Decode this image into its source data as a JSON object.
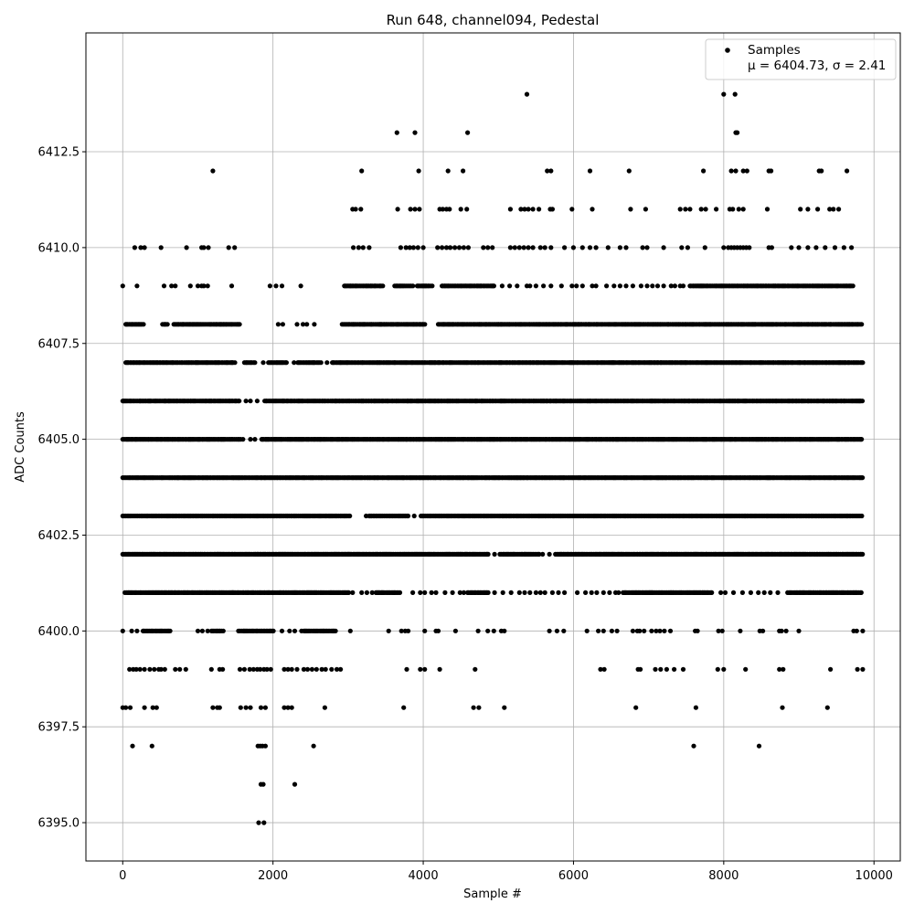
{
  "chart_data": {
    "type": "scatter",
    "title": "Run 648, channel094, Pedestal",
    "xlabel": "Sample #",
    "ylabel": "ADC Counts",
    "xlim": [
      -490,
      10350
    ],
    "ylim": [
      6394.0,
      6415.6
    ],
    "xticks": [
      0,
      2000,
      4000,
      6000,
      8000,
      10000
    ],
    "xtick_labels": [
      "0",
      "2000",
      "4000",
      "6000",
      "8000",
      "10000"
    ],
    "yticks": [
      6395.0,
      6397.5,
      6400.0,
      6402.5,
      6405.0,
      6407.5,
      6410.0,
      6412.5
    ],
    "ytick_labels": [
      "6395.0",
      "6397.5",
      "6400.0",
      "6402.5",
      "6405.0",
      "6407.5",
      "6410.0",
      "6412.5"
    ],
    "grid": true,
    "legend_position": "top-right",
    "marker_color": "#000000",
    "series": [
      {
        "name": "Samples",
        "stats_label": "μ = 6404.73, σ = 2.41",
        "x_range": [
          0,
          9850
        ],
        "dense_rows": [
          {
            "y": 6407,
            "x": [
              [
                40,
                1510
              ],
              [
                1640,
                1760
              ],
              [
                1940,
                2180
              ],
              [
                2330,
                2650
              ],
              [
                2790,
                9850
              ]
            ]
          },
          {
            "y": 6406,
            "x": [
              [
                0,
                1560
              ],
              [
                1890,
                9850
              ]
            ]
          },
          {
            "y": 6405,
            "x": [
              [
                0,
                1570
              ],
              [
                1850,
                9850
              ]
            ]
          },
          {
            "y": 6404,
            "x": [
              [
                0,
                9850
              ]
            ]
          },
          {
            "y": 6403,
            "x": [
              [
                0,
                3030
              ],
              [
                3280,
                3810
              ],
              [
                3970,
                9850
              ]
            ]
          },
          {
            "y": 6402,
            "x": [
              [
                0,
                4870
              ],
              [
                5020,
                5560
              ],
              [
                5760,
                9850
              ]
            ]
          },
          {
            "y": 6401,
            "x": [
              [
                30,
                3020
              ],
              [
                3370,
                3700
              ],
              [
                4590,
                4880
              ],
              [
                6660,
                7850
              ],
              [
                8850,
                9850
              ]
            ]
          },
          {
            "y": 6400,
            "x": [
              [
                270,
                640
              ],
              [
                1180,
                1340
              ],
              [
                1540,
                2010
              ],
              [
                2410,
                2850
              ]
            ]
          },
          {
            "y": 6408,
            "x": [
              [
                40,
                280
              ],
              [
                530,
                600
              ],
              [
                680,
                1570
              ],
              [
                2920,
                4030
              ],
              [
                4200,
                9850
              ]
            ]
          },
          {
            "y": 6409,
            "x": [
              [
                2950,
                3470
              ],
              [
                3620,
                3870
              ],
              [
                3920,
                4130
              ],
              [
                4250,
                4950
              ],
              [
                7550,
                9720
              ]
            ]
          }
        ],
        "sparse_points": [
          {
            "y": 6414,
            "x": [
              5380,
              8000,
              8150
            ]
          },
          {
            "y": 6413,
            "x": [
              3650,
              3890,
              4590,
              8160,
              8180
            ]
          },
          {
            "y": 6412,
            "x": [
              1200,
              3180,
              3940,
              4330,
              4530,
              5650,
              5700,
              6220,
              6740,
              7730,
              8100,
              8160,
              8260,
              8310,
              8600,
              8630,
              9270,
              9300,
              9640
            ]
          },
          {
            "y": 6411,
            "x": [
              3060,
              3100,
              3170,
              3660,
              3830,
              3890,
              3950,
              4220,
              4260,
              4310,
              4350,
              4500,
              4580,
              5160,
              5300,
              5350,
              5400,
              5460,
              5540,
              5690,
              5720,
              5980,
              6250,
              6760,
              6960,
              7420,
              7490,
              7550,
              7700,
              7760,
              7900,
              8080,
              8120,
              8200,
              8260,
              8580,
              9020,
              9120,
              9250,
              9410,
              9460,
              9530
            ]
          },
          {
            "y": 6410,
            "x": [
              160,
              240,
              290,
              510,
              850,
              1050,
              1080,
              1140,
              1410,
              1490,
              3070,
              3140,
              3200,
              3280,
              3700,
              3770,
              3820,
              3870,
              3930,
              4000,
              4190,
              4250,
              4310,
              4360,
              4420,
              4480,
              4540,
              4600,
              4800,
              4860,
              4920,
              5160,
              5220,
              5280,
              5340,
              5400,
              5460,
              5560,
              5620,
              5700,
              5880,
              6000,
              6120,
              6220,
              6300,
              6460,
              6620,
              6700,
              6920,
              6980,
              7200,
              7440,
              7520,
              7750,
              8000,
              8060,
              8100,
              8140,
              8180,
              8220,
              8260,
              8300,
              8340,
              8600,
              8640,
              8900,
              9000,
              9120,
              9230,
              9350,
              9480,
              9600,
              9700
            ]
          },
          {
            "y": 6409,
            "x": [
              0,
              190,
              550,
              650,
              700,
              900,
              1000,
              1050,
              1080,
              1130,
              1450,
              1960,
              2040,
              2120,
              2370,
              5050,
              5150,
              5250,
              5380,
              5420,
              5500,
              5600,
              5700,
              5840,
              5980,
              6040,
              6120,
              6250,
              6300,
              6440,
              6540,
              6620,
              6700,
              6790,
              6900,
              6980,
              7050,
              7120,
              7200,
              7300,
              7350,
              7420,
              7460
            ]
          },
          {
            "y": 6408,
            "x": [
              2070,
              2130,
              2320,
              2400,
              2450,
              2550
            ]
          },
          {
            "y": 6407,
            "x": [
              1620,
              1870,
              2280,
              2720
            ]
          },
          {
            "y": 6406,
            "x": [
              1640,
              1700,
              1790
            ]
          },
          {
            "y": 6405,
            "x": [
              1600,
              1700,
              1760
            ]
          },
          {
            "y": 6403,
            "x": [
              3240,
              3880
            ]
          },
          {
            "y": 6402,
            "x": [
              4950,
              5590,
              5680
            ]
          },
          {
            "y": 6401,
            "x": [
              3060,
              3180,
              3250,
              3320,
              3860,
              3960,
              4020,
              4110,
              4170,
              4290,
              4390,
              4490,
              4540,
              4950,
              5060,
              5170,
              5280,
              5350,
              5420,
              5500,
              5560,
              5620,
              5720,
              5800,
              5880,
              6050,
              6160,
              6240,
              6310,
              6400,
              6480,
              6560,
              6600,
              7960,
              8020,
              8130,
              8250,
              8360,
              8460,
              8540,
              8620,
              8720
            ]
          },
          {
            "y": 6400,
            "x": [
              0,
              120,
              190,
              1000,
              1060,
              1130,
              2120,
              2220,
              2290,
              2380,
              3030,
              3540,
              3710,
              3760,
              3800,
              4020,
              4170,
              4200,
              4430,
              4730,
              4860,
              4940,
              5040,
              5080,
              5680,
              5780,
              5870,
              6180,
              6330,
              6400,
              6510,
              6580,
              6790,
              6850,
              6880,
              6940,
              7040,
              7100,
              7150,
              7210,
              7290,
              7620,
              7650,
              7930,
              7980,
              8220,
              8480,
              8520,
              8740,
              8770,
              8830,
              9000,
              9730,
              9770,
              9850
            ]
          },
          {
            "y": 6399,
            "x": [
              90,
              140,
              180,
              230,
              290,
              360,
              420,
              480,
              510,
              560,
              700,
              760,
              840,
              1180,
              1290,
              1330,
              1560,
              1620,
              1690,
              1740,
              1790,
              1830,
              1880,
              1920,
              1970,
              2150,
              2200,
              2250,
              2320,
              2410,
              2460,
              2520,
              2580,
              2650,
              2700,
              2780,
              2850,
              2900,
              3780,
              3960,
              4020,
              4220,
              4690,
              6360,
              6410,
              6860,
              6890,
              7090,
              7160,
              7240,
              7340,
              7460,
              7920,
              8000,
              8290,
              8740,
              8790,
              9420,
              9780,
              9850
            ]
          },
          {
            "y": 6398,
            "x": [
              0,
              40,
              100,
              290,
              400,
              450,
              1200,
              1260,
              1290,
              1570,
              1640,
              1700,
              1840,
              1900,
              2150,
              2200,
              2250,
              2690,
              3740,
              4670,
              4740,
              5080,
              6830,
              7630,
              8780,
              9380
            ]
          },
          {
            "y": 6397,
            "x": [
              130,
              390,
              1800,
              1830,
              1860,
              1900,
              2540,
              7600,
              8470
            ]
          },
          {
            "y": 6396,
            "x": [
              1840,
              1870,
              2290
            ]
          },
          {
            "y": 6395,
            "x": [
              1810,
              1880
            ]
          }
        ]
      }
    ]
  }
}
